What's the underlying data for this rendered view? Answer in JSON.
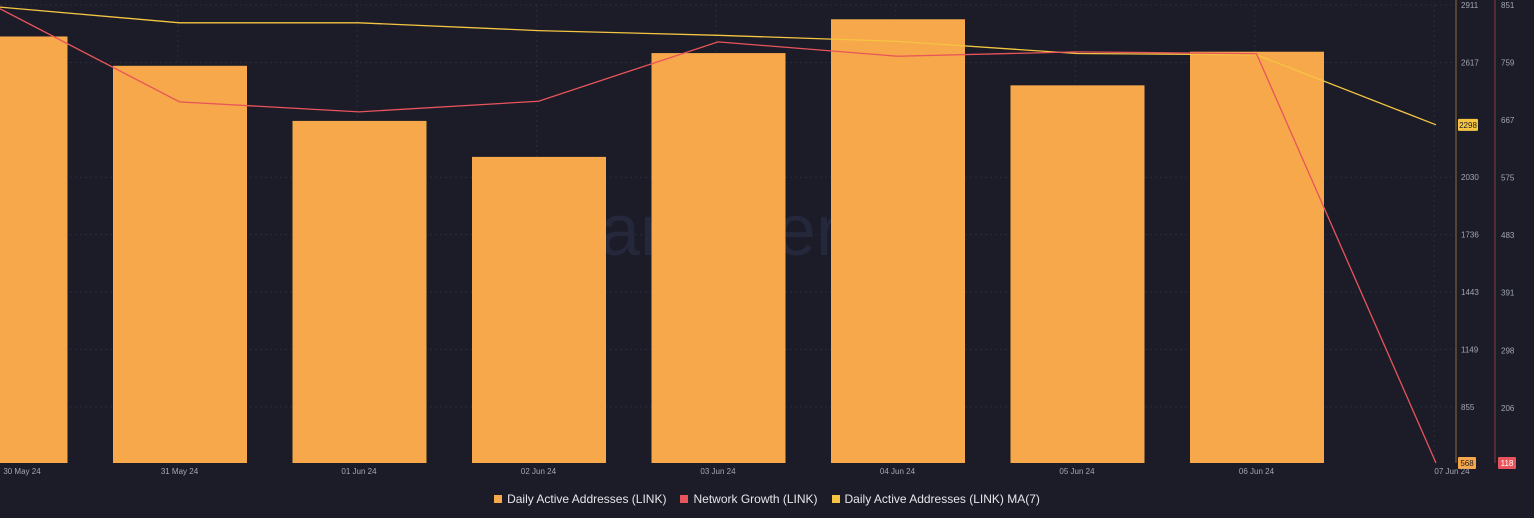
{
  "chart_data": {
    "type": "bar",
    "categories": [
      "30 May 24",
      "31 May 24",
      "01 Jun 24",
      "02 Jun 24",
      "03 Jun 24",
      "04 Jun 24",
      "05 Jun 24",
      "06 Jun 24",
      "07 Jun 24"
    ],
    "series": [
      {
        "name": "Daily Active Addresses (LINK)",
        "kind": "bar",
        "axis": "left",
        "color": "#f7a84a",
        "values": [
          2750,
          2600,
          2318,
          2134,
          2665,
          2838,
          2500,
          2672,
          568
        ]
      },
      {
        "name": "Network Growth (LINK)",
        "kind": "line",
        "axis": "right",
        "color": "#e8545b",
        "values": [
          845,
          696,
          680,
          697,
          792,
          769,
          776,
          773,
          118
        ]
      },
      {
        "name": "Daily Active Addresses (LINK) MA(7)",
        "kind": "line",
        "axis": "left",
        "color": "#f5c542",
        "values": [
          2900,
          2820,
          2820,
          2780,
          2756,
          2725,
          2663,
          2656,
          2298
        ]
      }
    ],
    "left_axis": {
      "ticks": [
        "2911",
        "2617",
        "2030",
        "1736",
        "1443",
        "1149",
        "855"
      ],
      "tick_values": [
        2911,
        2617,
        2030,
        1736,
        1443,
        1149,
        855
      ],
      "range": [
        568,
        2911
      ],
      "current_label": "2298",
      "min_label": "568"
    },
    "right_axis": {
      "ticks": [
        "851",
        "759",
        "667",
        "575",
        "483",
        "391",
        "298",
        "206"
      ],
      "tick_values": [
        851,
        759,
        667,
        575,
        483,
        391,
        298,
        206
      ],
      "range": [
        118,
        851
      ],
      "current_label": "118"
    },
    "watermark": "santiment",
    "legend_position": "bottom",
    "grid": true
  },
  "colors": {
    "background": "#1b1c28",
    "grid": "#2b2d3b",
    "axis_text": "#a3a6b5",
    "left_axis_line": "#8a6c3a",
    "right_axis_line": "#8a3a44"
  }
}
